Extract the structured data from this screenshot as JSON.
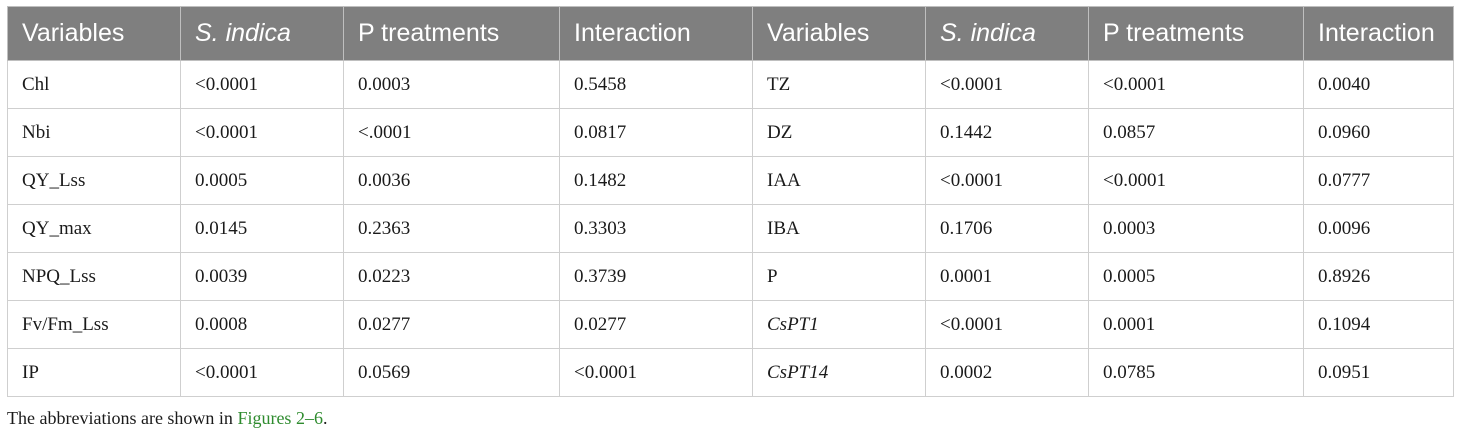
{
  "table": {
    "headers": [
      "Variables",
      "S. indica",
      "P treatments",
      "Interaction",
      "Variables",
      "S. indica",
      "P treatments",
      "Interaction"
    ],
    "rows": [
      [
        "Chl",
        "<0.0001",
        "0.0003",
        "0.5458",
        "TZ",
        "<0.0001",
        "<0.0001",
        "0.0040"
      ],
      [
        "Nbi",
        "<0.0001",
        "<.0001",
        "0.0817",
        "DZ",
        "0.1442",
        "0.0857",
        "0.0960"
      ],
      [
        "QY_Lss",
        "0.0005",
        "0.0036",
        "0.1482",
        "IAA",
        "<0.0001",
        "<0.0001",
        "0.0777"
      ],
      [
        "QY_max",
        "0.0145",
        "0.2363",
        "0.3303",
        "IBA",
        "0.1706",
        "0.0003",
        "0.0096"
      ],
      [
        "NPQ_Lss",
        "0.0039",
        "0.0223",
        "0.3739",
        "P",
        "0.0001",
        "0.0005",
        "0.8926"
      ],
      [
        "Fv/Fm_Lss",
        "0.0008",
        "0.0277",
        "0.0277",
        "CsPT1",
        "<0.0001",
        "0.0001",
        "0.1094"
      ],
      [
        "IP",
        "<0.0001",
        "0.0569",
        "<0.0001",
        "CsPT14",
        "0.0002",
        "0.0785",
        "0.0951"
      ]
    ]
  },
  "footnote": {
    "prefix": "The abbreviations are shown in ",
    "link": "Figures 2–6",
    "suffix": "."
  }
}
